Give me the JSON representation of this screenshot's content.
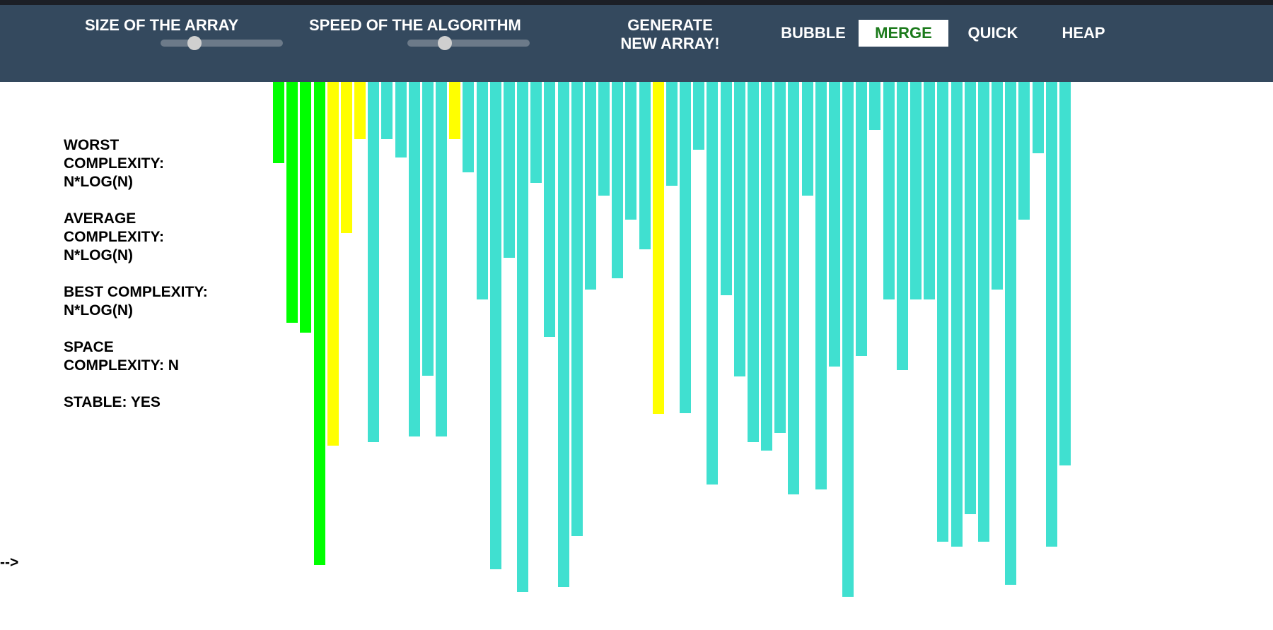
{
  "navbar": {
    "size_label": "SIZE\nOF THE\nARRAY",
    "size_slider_value": 0.25,
    "speed_label": "SPEED OF\nTHE\nALGORITHM",
    "speed_slider_value": 0.28,
    "generate_label": "GENERATE\nNEW\nARRAY!",
    "algorithms": [
      {
        "label": "BUBBLE",
        "active": false
      },
      {
        "label": "MERGE",
        "active": true
      },
      {
        "label": "QUICK",
        "active": false
      },
      {
        "label": "HEAP",
        "active": false
      }
    ]
  },
  "info": {
    "worst": "WORST\nCOMPLEXITY:\nN*LOG(N)",
    "average": "AVERAGE\nCOMPLEXITY:\nN*LOG(N)",
    "best": "BEST COMPLEXITY:\nN*LOG(N)",
    "space": "SPACE\nCOMPLEXITY: N",
    "stable": "STABLE: YES"
  },
  "stray_text": "-->",
  "colors": {
    "navbar": "#34495e",
    "bar_default": "#40e0d0",
    "bar_sorted": "#00ff00",
    "bar_compare": "#ffff00",
    "active_text": "#1b7a1b"
  },
  "array": {
    "values": [
      115,
      341,
      355,
      684,
      515,
      214,
      81,
      510,
      81,
      107,
      502,
      416,
      502,
      81,
      128,
      308,
      690,
      249,
      722,
      143,
      361,
      715,
      643,
      294,
      161,
      278,
      195,
      237,
      470,
      147,
      469,
      96,
      570,
      302,
      417,
      510,
      522,
      497,
      584,
      161,
      577,
      403,
      729,
      388,
      68,
      308,
      408,
      308,
      308,
      651,
      658,
      612,
      651,
      294,
      712,
      195,
      101,
      658,
      543
    ],
    "states": [
      "sorted",
      "sorted",
      "sorted",
      "sorted",
      "compare",
      "compare",
      "compare",
      "default",
      "default",
      "default",
      "default",
      "default",
      "default",
      "compare",
      "default",
      "default",
      "default",
      "default",
      "default",
      "default",
      "default",
      "default",
      "default",
      "default",
      "default",
      "default",
      "default",
      "default",
      "compare",
      "default",
      "default",
      "default",
      "default",
      "default",
      "default",
      "default",
      "default",
      "default",
      "default",
      "default",
      "default",
      "default",
      "default",
      "default",
      "default",
      "default",
      "default",
      "default",
      "default",
      "default",
      "default",
      "default",
      "default",
      "default",
      "default",
      "default",
      "default",
      "default",
      "default"
    ]
  }
}
